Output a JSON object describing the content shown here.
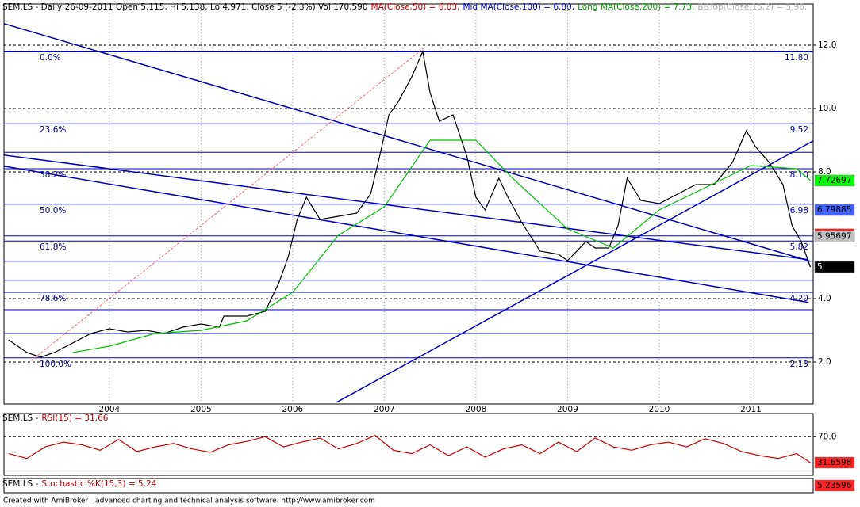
{
  "chart_data": [
    {
      "type": "line",
      "title_parts": [
        {
          "text": "SEM.LS - Daily 26-09-2011 Open 5.115, Hi 5.138, Lo 4.971, Close 5 (-2.3%) Vol 170,590",
          "color": "#000000"
        },
        {
          "text": "MA(Close,50) = 6.03,",
          "color": "#c00000"
        },
        {
          "text": "Mid MA(Close,100) = 6.80,",
          "color": "#0000c0"
        },
        {
          "text": "Long MA(Close,200) = 7.73,",
          "color": "#00a000"
        },
        {
          "text": "BBTop(Close,15,2) = 5.96,",
          "color": "#b0b0b0"
        }
      ],
      "xlim": [
        2002.85,
        2011.68
      ],
      "xticks": [
        2004,
        2005,
        2006,
        2007,
        2008,
        2009,
        2010,
        2011
      ],
      "ylim": [
        0.675,
        13.3
      ],
      "yticks": [
        {
          "value": 12,
          "label": "12.0"
        },
        {
          "value": 10,
          "label": "10.0"
        },
        {
          "value": 8,
          "label": "8.0"
        },
        {
          "value": 4,
          "label": "4.0"
        },
        {
          "value": 2,
          "label": "2.0"
        }
      ],
      "grid": true,
      "series": [
        {
          "color": "#000000",
          "x": [
            2002.9,
            2003.1,
            2003.25,
            2003.4,
            2003.6,
            2003.8,
            2004.0,
            2004.2,
            2004.4,
            2004.6,
            2004.8,
            2005.0,
            2005.2,
            2005.25,
            2005.5,
            2005.7,
            2005.85,
            2005.95,
            2006.05,
            2006.15,
            2006.3,
            2006.5,
            2006.7,
            2006.85,
            2006.95,
            2007.05,
            2007.15,
            2007.3,
            2007.42,
            2007.5,
            2007.6,
            2007.75,
            2007.9,
            2008.0,
            2008.1,
            2008.25,
            2008.35,
            2008.5,
            2008.7,
            2008.9,
            2009.0,
            2009.1,
            2009.2,
            2009.3,
            2009.45,
            2009.55,
            2009.65,
            2009.8,
            2010.0,
            2010.2,
            2010.4,
            2010.6,
            2010.8,
            2010.95,
            2011.05,
            2011.2,
            2011.35,
            2011.45,
            2011.55,
            2011.65
          ],
          "values": [
            2.7,
            2.3,
            2.15,
            2.3,
            2.6,
            2.9,
            3.05,
            2.95,
            3.0,
            2.9,
            3.1,
            3.2,
            3.1,
            3.45,
            3.45,
            3.6,
            4.5,
            5.3,
            6.5,
            7.2,
            6.5,
            6.6,
            6.7,
            7.3,
            8.5,
            9.8,
            10.2,
            11.0,
            11.8,
            10.5,
            9.6,
            9.8,
            8.5,
            7.2,
            6.8,
            7.8,
            7.2,
            6.4,
            5.5,
            5.4,
            5.2,
            5.5,
            5.8,
            5.6,
            5.6,
            6.3,
            7.8,
            7.1,
            7.0,
            7.3,
            7.6,
            7.6,
            8.3,
            9.3,
            8.8,
            8.3,
            7.6,
            6.3,
            5.8,
            5.0
          ]
        },
        {
          "color": "#00c000",
          "x": [
            2003.6,
            2004.0,
            2004.5,
            2005.0,
            2005.5,
            2006.0,
            2006.5,
            2007.0,
            2007.5,
            2008.0,
            2008.4,
            2009.0,
            2009.5,
            2010.0,
            2010.5,
            2011.0,
            2011.5,
            2011.65
          ],
          "values": [
            2.3,
            2.5,
            2.9,
            3.0,
            3.3,
            4.2,
            6.0,
            6.9,
            9.0,
            9.0,
            7.8,
            6.2,
            5.6,
            6.8,
            7.5,
            8.2,
            8.1,
            7.73
          ]
        }
      ],
      "fib_levels": [
        {
          "ratio_label": "0.0%",
          "value": 11.8,
          "value_label": "11.80"
        },
        {
          "ratio_label": "23.6%",
          "value": 9.52
        },
        {
          "ratio_label": "38.2%",
          "value": 8.1,
          "value_label": "8.10"
        },
        {
          "ratio_label": "50.0%",
          "value": 6.98
        },
        {
          "ratio_label": "61.8%",
          "value": 5.82
        },
        {
          "ratio_label": "78.6%",
          "value": 4.2,
          "value_label": "4.20"
        },
        {
          "ratio_label": "100.0%",
          "value": 2.13
        }
      ],
      "hlines": [
        8.62,
        5.98,
        5.18,
        4.58,
        3.65,
        2.9
      ],
      "trend_lines": [
        {
          "color": "#0000c0",
          "x": [
            2002.85,
            2011.65
          ],
          "values": [
            12.68,
            5.18
          ]
        },
        {
          "color": "#0000c0",
          "x": [
            2002.85,
            2011.63
          ],
          "values": [
            8.53,
            5.23
          ]
        },
        {
          "color": "#0000c0",
          "x": [
            2002.85,
            2011.63
          ],
          "values": [
            8.18,
            3.88
          ]
        },
        {
          "color": "#0000c0",
          "x": [
            2006.48,
            2011.68
          ],
          "values": [
            0.73,
            8.98
          ]
        },
        {
          "color": "#ff4040",
          "x": [
            2003.15,
            2007.44
          ],
          "values": [
            2.05,
            11.93
          ]
        }
      ],
      "markers": [
        {
          "value": 7.72697,
          "color": "#00ff00"
        },
        {
          "value": 6.79885,
          "color": "#4060ff"
        },
        {
          "value": 6.0305,
          "color": "#ff2020"
        },
        {
          "value": 5.95697,
          "color": "#c0c0c0"
        },
        {
          "value": 5.0049,
          "color": "#ffffff"
        },
        {
          "value": 5,
          "color": "#000000"
        }
      ]
    },
    {
      "type": "line",
      "title_parts": [
        {
          "text": "SEM.LS -",
          "color": "#000000"
        },
        {
          "text": "RSI(15) = 31.66",
          "color": "#c00000"
        }
      ],
      "xlim": [
        2002.85,
        2011.68
      ],
      "ylim": [
        12.9,
        104.3
      ],
      "yticks": [
        {
          "value": 70,
          "label": "70.0"
        }
      ],
      "series": [
        {
          "color": "#d00000",
          "x": [
            2002.9,
            2003.1,
            2003.3,
            2003.5,
            2003.7,
            2003.9,
            2004.1,
            2004.3,
            2004.5,
            2004.7,
            2004.9,
            2005.1,
            2005.3,
            2005.5,
            2005.7,
            2005.9,
            2006.1,
            2006.3,
            2006.5,
            2006.7,
            2006.9,
            2007.1,
            2007.3,
            2007.5,
            2007.7,
            2007.9,
            2008.1,
            2008.3,
            2008.5,
            2008.7,
            2008.9,
            2009.1,
            2009.3,
            2009.5,
            2009.7,
            2009.9,
            2010.1,
            2010.3,
            2010.5,
            2010.7,
            2010.9,
            2011.1,
            2011.3,
            2011.5,
            2011.65
          ],
          "values": [
            45,
            38,
            55,
            62,
            58,
            50,
            66,
            48,
            55,
            60,
            52,
            47,
            58,
            63,
            70,
            55,
            62,
            68,
            52,
            60,
            72,
            50,
            45,
            58,
            42,
            55,
            40,
            52,
            58,
            45,
            62,
            48,
            68,
            55,
            50,
            58,
            62,
            55,
            67,
            60,
            48,
            42,
            38,
            45,
            31.66
          ]
        }
      ],
      "markers": [
        {
          "value": 31.6598,
          "color": "#ff2020"
        }
      ]
    },
    {
      "type": "line",
      "title_parts": [
        {
          "text": "SEM.LS -",
          "color": "#000000"
        },
        {
          "text": "Stochastic %K(15,3) = 5.24",
          "color": "#c00000"
        }
      ],
      "markers": [
        {
          "label": "5.23596",
          "color": "#ff2020"
        }
      ]
    }
  ],
  "footer": "Created with AmiBroker - advanced charting and technical analysis software. http://www.amibroker.com"
}
